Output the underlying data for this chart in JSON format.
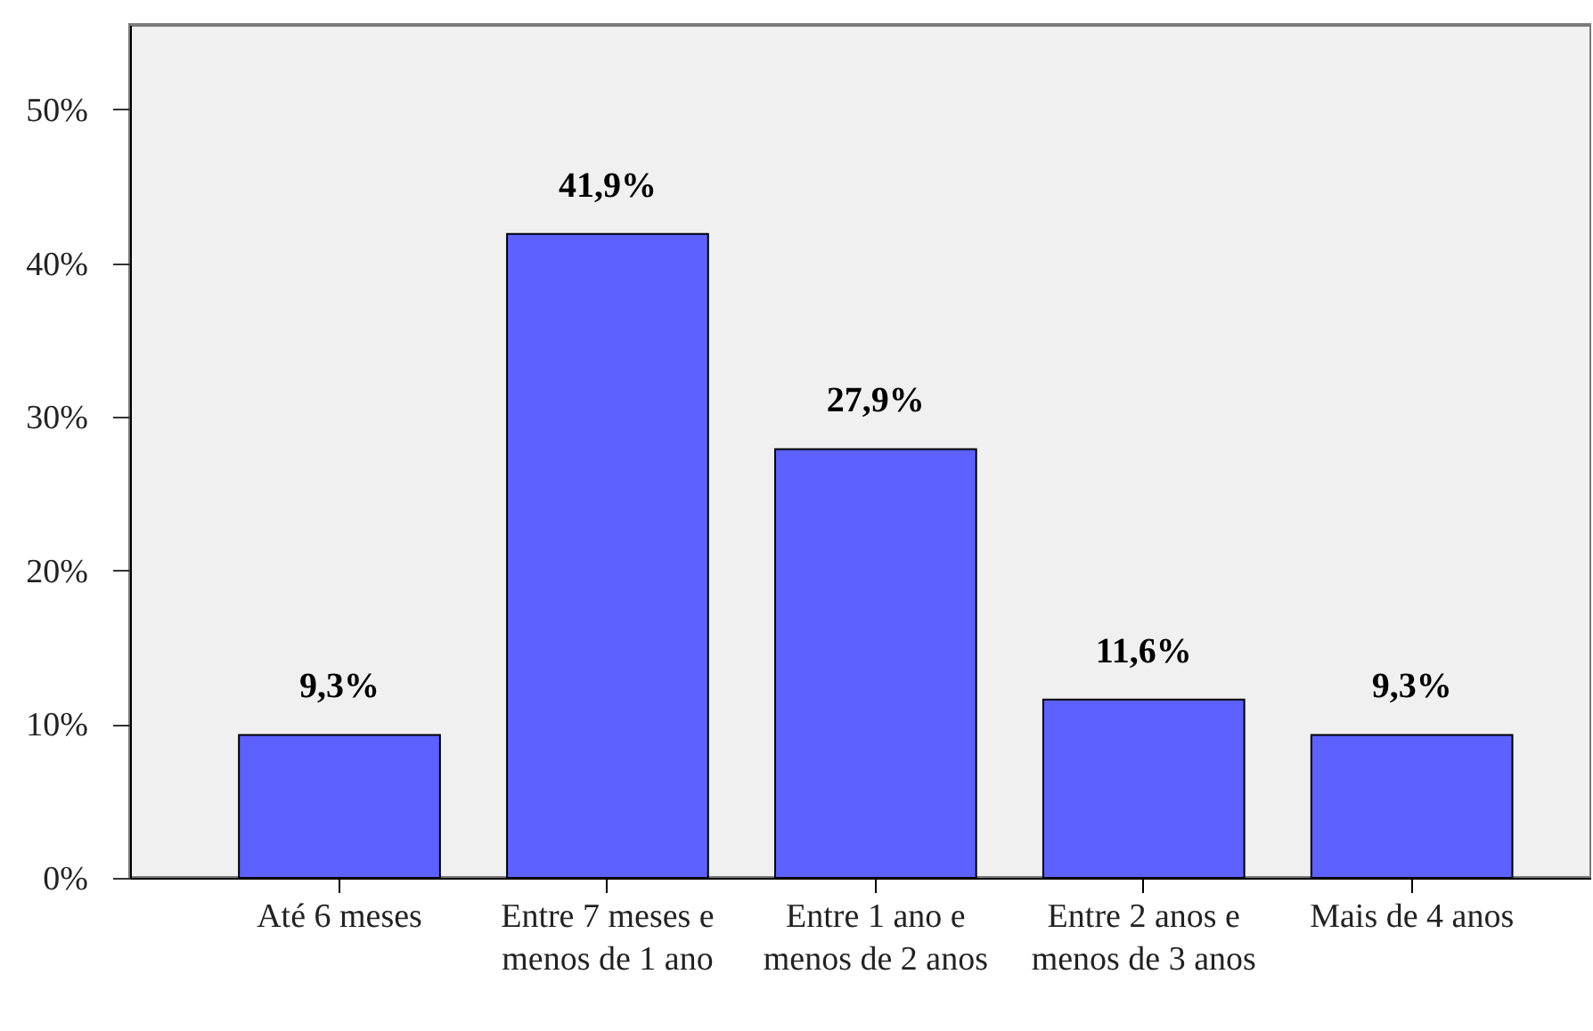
{
  "chart_data": {
    "type": "bar",
    "categories": [
      "Até 6 meses",
      "Entre 7 meses e menos de 1 ano",
      "Entre 1 ano e menos de 2 anos",
      "Entre 2 anos e menos de 3 anos",
      "Mais de 4 anos"
    ],
    "values": [
      9.3,
      41.9,
      27.9,
      11.6,
      9.3
    ],
    "color": "#5c61ff",
    "value_labels": [
      "9,3%",
      "41,9%",
      "27,9%",
      "11,6%",
      "9,3%"
    ],
    "ylim": [
      0,
      55.5
    ],
    "yticks": [
      {
        "value": 0,
        "label": "0%"
      },
      {
        "value": 10,
        "label": "10%"
      },
      {
        "value": 20,
        "label": "20%"
      },
      {
        "value": 30,
        "label": "30%"
      },
      {
        "value": 40,
        "label": "40%"
      },
      {
        "value": 50,
        "label": "50%"
      }
    ],
    "grid": false
  }
}
